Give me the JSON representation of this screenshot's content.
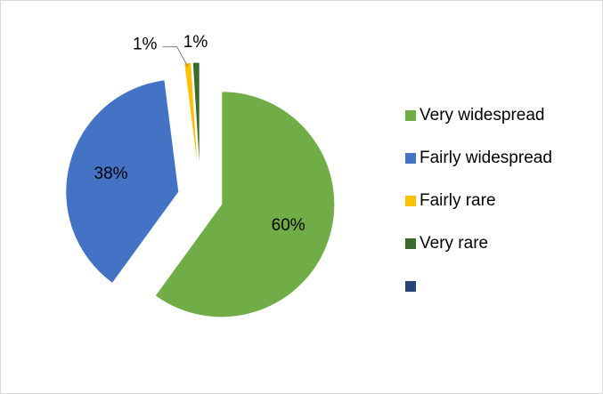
{
  "chart_data": {
    "type": "pie",
    "categories": [
      "Very widespread",
      "Fairly widespread",
      "Fairly rare",
      "Very rare",
      null
    ],
    "values": [
      60,
      38,
      1,
      1,
      0
    ],
    "value_labels": [
      "60%",
      "38%",
      "1%",
      "1%",
      null
    ],
    "colors": [
      "#70ad47",
      "#4472c4",
      "#ffc000",
      "#3b6b2c",
      "#264478"
    ],
    "exploded": true,
    "legend": "right"
  }
}
